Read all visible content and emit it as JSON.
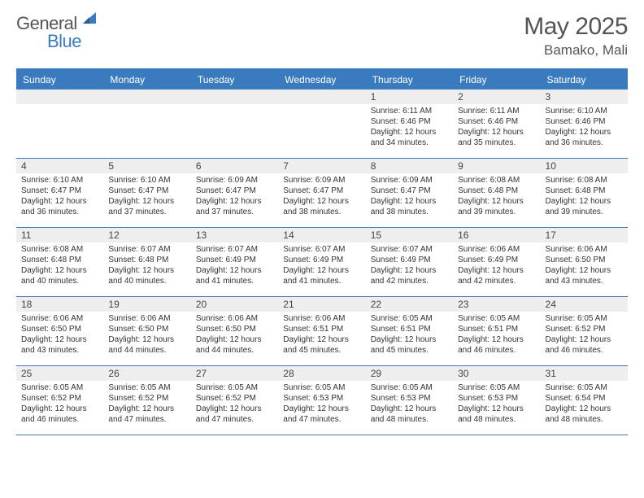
{
  "logo": {
    "general": "General",
    "blue": "Blue"
  },
  "title": {
    "month": "May 2025",
    "location": "Bamako, Mali"
  },
  "dayNames": [
    "Sunday",
    "Monday",
    "Tuesday",
    "Wednesday",
    "Thursday",
    "Friday",
    "Saturday"
  ],
  "colors": {
    "brand": "#3a7bbf",
    "headerText": "#ffffff",
    "dayNumBg": "#eeeeee",
    "text": "#333333",
    "titleText": "#555555"
  },
  "layout": {
    "startWeekday": 4,
    "daysInMonth": 31
  },
  "days": [
    {
      "n": 1,
      "sunrise": "6:11 AM",
      "sunset": "6:46 PM",
      "daylight": "12 hours and 34 minutes."
    },
    {
      "n": 2,
      "sunrise": "6:11 AM",
      "sunset": "6:46 PM",
      "daylight": "12 hours and 35 minutes."
    },
    {
      "n": 3,
      "sunrise": "6:10 AM",
      "sunset": "6:46 PM",
      "daylight": "12 hours and 36 minutes."
    },
    {
      "n": 4,
      "sunrise": "6:10 AM",
      "sunset": "6:47 PM",
      "daylight": "12 hours and 36 minutes."
    },
    {
      "n": 5,
      "sunrise": "6:10 AM",
      "sunset": "6:47 PM",
      "daylight": "12 hours and 37 minutes."
    },
    {
      "n": 6,
      "sunrise": "6:09 AM",
      "sunset": "6:47 PM",
      "daylight": "12 hours and 37 minutes."
    },
    {
      "n": 7,
      "sunrise": "6:09 AM",
      "sunset": "6:47 PM",
      "daylight": "12 hours and 38 minutes."
    },
    {
      "n": 8,
      "sunrise": "6:09 AM",
      "sunset": "6:47 PM",
      "daylight": "12 hours and 38 minutes."
    },
    {
      "n": 9,
      "sunrise": "6:08 AM",
      "sunset": "6:48 PM",
      "daylight": "12 hours and 39 minutes."
    },
    {
      "n": 10,
      "sunrise": "6:08 AM",
      "sunset": "6:48 PM",
      "daylight": "12 hours and 39 minutes."
    },
    {
      "n": 11,
      "sunrise": "6:08 AM",
      "sunset": "6:48 PM",
      "daylight": "12 hours and 40 minutes."
    },
    {
      "n": 12,
      "sunrise": "6:07 AM",
      "sunset": "6:48 PM",
      "daylight": "12 hours and 40 minutes."
    },
    {
      "n": 13,
      "sunrise": "6:07 AM",
      "sunset": "6:49 PM",
      "daylight": "12 hours and 41 minutes."
    },
    {
      "n": 14,
      "sunrise": "6:07 AM",
      "sunset": "6:49 PM",
      "daylight": "12 hours and 41 minutes."
    },
    {
      "n": 15,
      "sunrise": "6:07 AM",
      "sunset": "6:49 PM",
      "daylight": "12 hours and 42 minutes."
    },
    {
      "n": 16,
      "sunrise": "6:06 AM",
      "sunset": "6:49 PM",
      "daylight": "12 hours and 42 minutes."
    },
    {
      "n": 17,
      "sunrise": "6:06 AM",
      "sunset": "6:50 PM",
      "daylight": "12 hours and 43 minutes."
    },
    {
      "n": 18,
      "sunrise": "6:06 AM",
      "sunset": "6:50 PM",
      "daylight": "12 hours and 43 minutes."
    },
    {
      "n": 19,
      "sunrise": "6:06 AM",
      "sunset": "6:50 PM",
      "daylight": "12 hours and 44 minutes."
    },
    {
      "n": 20,
      "sunrise": "6:06 AM",
      "sunset": "6:50 PM",
      "daylight": "12 hours and 44 minutes."
    },
    {
      "n": 21,
      "sunrise": "6:06 AM",
      "sunset": "6:51 PM",
      "daylight": "12 hours and 45 minutes."
    },
    {
      "n": 22,
      "sunrise": "6:05 AM",
      "sunset": "6:51 PM",
      "daylight": "12 hours and 45 minutes."
    },
    {
      "n": 23,
      "sunrise": "6:05 AM",
      "sunset": "6:51 PM",
      "daylight": "12 hours and 46 minutes."
    },
    {
      "n": 24,
      "sunrise": "6:05 AM",
      "sunset": "6:52 PM",
      "daylight": "12 hours and 46 minutes."
    },
    {
      "n": 25,
      "sunrise": "6:05 AM",
      "sunset": "6:52 PM",
      "daylight": "12 hours and 46 minutes."
    },
    {
      "n": 26,
      "sunrise": "6:05 AM",
      "sunset": "6:52 PM",
      "daylight": "12 hours and 47 minutes."
    },
    {
      "n": 27,
      "sunrise": "6:05 AM",
      "sunset": "6:52 PM",
      "daylight": "12 hours and 47 minutes."
    },
    {
      "n": 28,
      "sunrise": "6:05 AM",
      "sunset": "6:53 PM",
      "daylight": "12 hours and 47 minutes."
    },
    {
      "n": 29,
      "sunrise": "6:05 AM",
      "sunset": "6:53 PM",
      "daylight": "12 hours and 48 minutes."
    },
    {
      "n": 30,
      "sunrise": "6:05 AM",
      "sunset": "6:53 PM",
      "daylight": "12 hours and 48 minutes."
    },
    {
      "n": 31,
      "sunrise": "6:05 AM",
      "sunset": "6:54 PM",
      "daylight": "12 hours and 48 minutes."
    }
  ],
  "labels": {
    "sunrise": "Sunrise: ",
    "sunset": "Sunset: ",
    "daylight": "Daylight: "
  }
}
